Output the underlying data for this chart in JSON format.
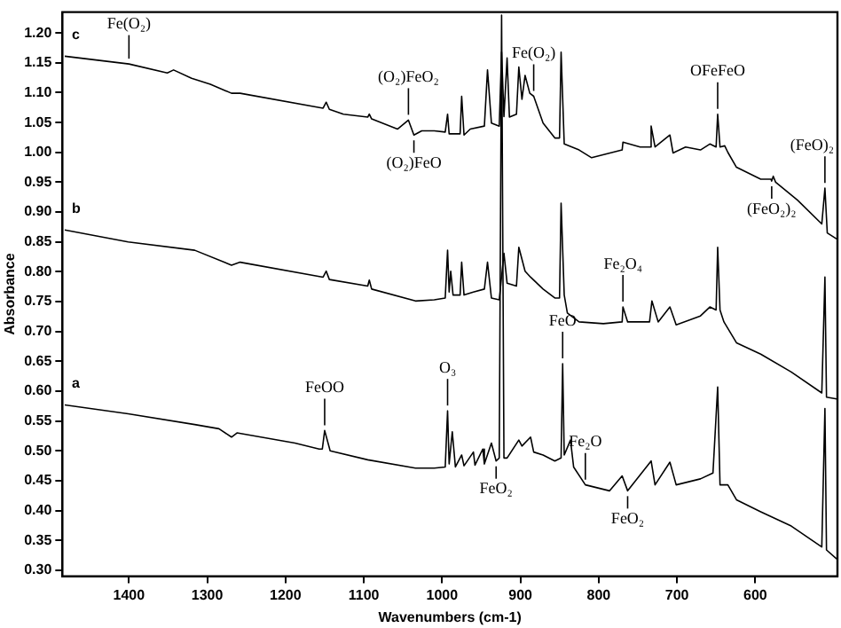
{
  "chart_data": {
    "type": "line",
    "xlabel": "Wavenumbers (cm-1)",
    "ylabel": "Absorbance",
    "xlim": [
      1485,
      495
    ],
    "xticks": [
      1400,
      1300,
      1200,
      1100,
      1000,
      900,
      800,
      700,
      600
    ],
    "ylim": [
      0.29,
      1.235
    ],
    "yticks": [
      {
        "value": 0.3,
        "label": "0.30"
      },
      {
        "value": 0.35,
        "label": "0.35"
      },
      {
        "value": 0.4,
        "label": "0.40"
      },
      {
        "value": 0.45,
        "label": "0.45"
      },
      {
        "value": 0.5,
        "label": "0.50"
      },
      {
        "value": 0.55,
        "label": "0.55"
      },
      {
        "value": 0.6,
        "label": "0.60"
      },
      {
        "value": 0.65,
        "label": "0.65"
      },
      {
        "value": 0.7,
        "label": "0.70"
      },
      {
        "value": 0.75,
        "label": "0.75"
      },
      {
        "value": 0.8,
        "label": "0.80"
      },
      {
        "value": 0.85,
        "label": "0.85"
      },
      {
        "value": 0.9,
        "label": "0.90"
      },
      {
        "value": 0.95,
        "label": "0.95"
      },
      {
        "value": 1.0,
        "label": "1.00"
      },
      {
        "value": 1.05,
        "label": "1.05"
      },
      {
        "value": 1.1,
        "label": "1.10"
      },
      {
        "value": 1.15,
        "label": "1.15"
      },
      {
        "value": 1.2,
        "label": "1.20"
      }
    ],
    "grid": false,
    "legend": false,
    "marker": "none",
    "line_style": "solid",
    "series": [
      {
        "name": "c",
        "color": "#000000",
        "x": [
          1482,
          1400,
          1351,
          1343,
          1320,
          1296,
          1269,
          1258,
          1152,
          1148,
          1144,
          1126,
          1095,
          1093,
          1090,
          1057,
          1043,
          1036,
          1026,
          1010,
          996,
          993,
          991,
          977,
          975,
          972,
          964,
          946,
          942,
          937,
          927,
          924,
          921,
          917,
          914,
          905,
          902,
          898,
          894,
          888,
          883,
          871,
          856,
          850,
          848,
          844,
          825,
          809,
          770,
          769,
          747,
          735,
          733,
          728,
          709,
          705,
          689,
          670,
          658,
          650,
          648,
          645,
          639,
          635,
          624,
          593,
          580,
          579,
          577,
          574,
          546,
          515,
          511,
          508,
          496
        ],
        "values": [
          1.161,
          1.148,
          1.133,
          1.138,
          1.124,
          1.114,
          1.099,
          1.099,
          1.074,
          1.084,
          1.072,
          1.064,
          1.059,
          1.064,
          1.056,
          1.039,
          1.054,
          1.029,
          1.036,
          1.036,
          1.034,
          1.064,
          1.031,
          1.031,
          1.094,
          1.029,
          1.039,
          1.044,
          1.138,
          1.049,
          1.044,
          1.168,
          1.06,
          1.158,
          1.059,
          1.064,
          1.143,
          1.089,
          1.129,
          1.099,
          1.094,
          1.049,
          1.024,
          1.024,
          1.168,
          1.014,
          1.004,
          0.991,
          1.004,
          1.017,
          1.009,
          1.009,
          1.044,
          1.009,
          1.029,
          0.999,
          1.009,
          1.004,
          1.014,
          1.009,
          1.064,
          1.009,
          1.011,
          1.0,
          0.975,
          0.955,
          0.955,
          0.952,
          0.96,
          0.95,
          0.92,
          0.88,
          0.94,
          0.865,
          0.855
        ]
      },
      {
        "name": "b",
        "color": "#000000",
        "x": [
          1482,
          1401,
          1316,
          1269,
          1258,
          1152,
          1148,
          1144,
          1095,
          1093,
          1090,
          1034,
          1010,
          996,
          993,
          991,
          989,
          986,
          977,
          975,
          972,
          960,
          946,
          942,
          937,
          927,
          921,
          917,
          905,
          902,
          894,
          887,
          871,
          856,
          850,
          848,
          844,
          840,
          825,
          794,
          770,
          769,
          763,
          735,
          732,
          724,
          709,
          701,
          670,
          658,
          650,
          648,
          645,
          640,
          624,
          593,
          554,
          515,
          511,
          509,
          496
        ],
        "values": [
          0.87,
          0.85,
          0.836,
          0.811,
          0.816,
          0.791,
          0.801,
          0.787,
          0.776,
          0.786,
          0.771,
          0.751,
          0.753,
          0.756,
          0.836,
          0.766,
          0.801,
          0.761,
          0.761,
          0.816,
          0.761,
          0.766,
          0.771,
          0.816,
          0.756,
          0.753,
          0.831,
          0.781,
          0.776,
          0.841,
          0.801,
          0.791,
          0.771,
          0.756,
          0.756,
          0.915,
          0.761,
          0.731,
          0.716,
          0.713,
          0.716,
          0.741,
          0.716,
          0.716,
          0.751,
          0.716,
          0.741,
          0.711,
          0.726,
          0.741,
          0.736,
          0.841,
          0.736,
          0.716,
          0.681,
          0.662,
          0.632,
          0.597,
          0.791,
          0.59,
          0.587
        ]
      },
      {
        "name": "a",
        "color": "#000000",
        "x": [
          1482,
          1401,
          1316,
          1285,
          1269,
          1262,
          1188,
          1157,
          1153,
          1150,
          1143,
          1095,
          1034,
          1010,
          996,
          993,
          991,
          987,
          983,
          975,
          972,
          960,
          958,
          948,
          946,
          937,
          931,
          927,
          924,
          921,
          917,
          902,
          898,
          887,
          883,
          871,
          856,
          848,
          846,
          844,
          836,
          832,
          817,
          786,
          770,
          763,
          733,
          728,
          709,
          701,
          670,
          654,
          648,
          645,
          635,
          624,
          593,
          554,
          515,
          511,
          509,
          496
        ],
        "values": [
          0.577,
          0.562,
          0.544,
          0.537,
          0.523,
          0.53,
          0.513,
          0.503,
          0.503,
          0.534,
          0.5,
          0.485,
          0.471,
          0.471,
          0.473,
          0.567,
          0.478,
          0.532,
          0.473,
          0.493,
          0.475,
          0.498,
          0.476,
          0.503,
          0.478,
          0.513,
          0.483,
          0.488,
          1.23,
          0.488,
          0.488,
          0.518,
          0.508,
          0.523,
          0.498,
          0.493,
          0.483,
          0.488,
          0.646,
          0.493,
          0.518,
          0.473,
          0.443,
          0.433,
          0.458,
          0.433,
          0.483,
          0.443,
          0.481,
          0.443,
          0.453,
          0.463,
          0.607,
          0.443,
          0.443,
          0.418,
          0.398,
          0.374,
          0.339,
          0.571,
          0.334,
          0.319
        ]
      }
    ],
    "annotations": [
      {
        "text": "Fe(O₂)",
        "x": 1400,
        "y": 1.148
      },
      {
        "text": "(O₂)FeO₂",
        "x": 1043,
        "y": 1.054
      },
      {
        "text": "Fe(O₂)",
        "x": 883,
        "y": 1.094
      },
      {
        "text": "(O₂)FeO",
        "x": 1036,
        "y": 1.029
      },
      {
        "text": "OFeFeO",
        "x": 648,
        "y": 1.064
      },
      {
        "text": "(FeO)₂",
        "x": 511,
        "y": 0.94
      },
      {
        "text": "(FeO₂)₂",
        "x": 579,
        "y": 0.952
      },
      {
        "text": "Fe₂O₄",
        "x": 769,
        "y": 0.741
      },
      {
        "text": "FeOO",
        "x": 1150,
        "y": 0.534
      },
      {
        "text": "O₃",
        "x": 993,
        "y": 0.567
      },
      {
        "text": "FeO",
        "x": 846,
        "y": 0.646
      },
      {
        "text": "Fe₂O",
        "x": 817,
        "y": 0.443
      },
      {
        "text": "FeO₂",
        "x": 931,
        "y": 0.483
      },
      {
        "text": "FeO₂",
        "x": 763,
        "y": 0.433
      }
    ]
  }
}
